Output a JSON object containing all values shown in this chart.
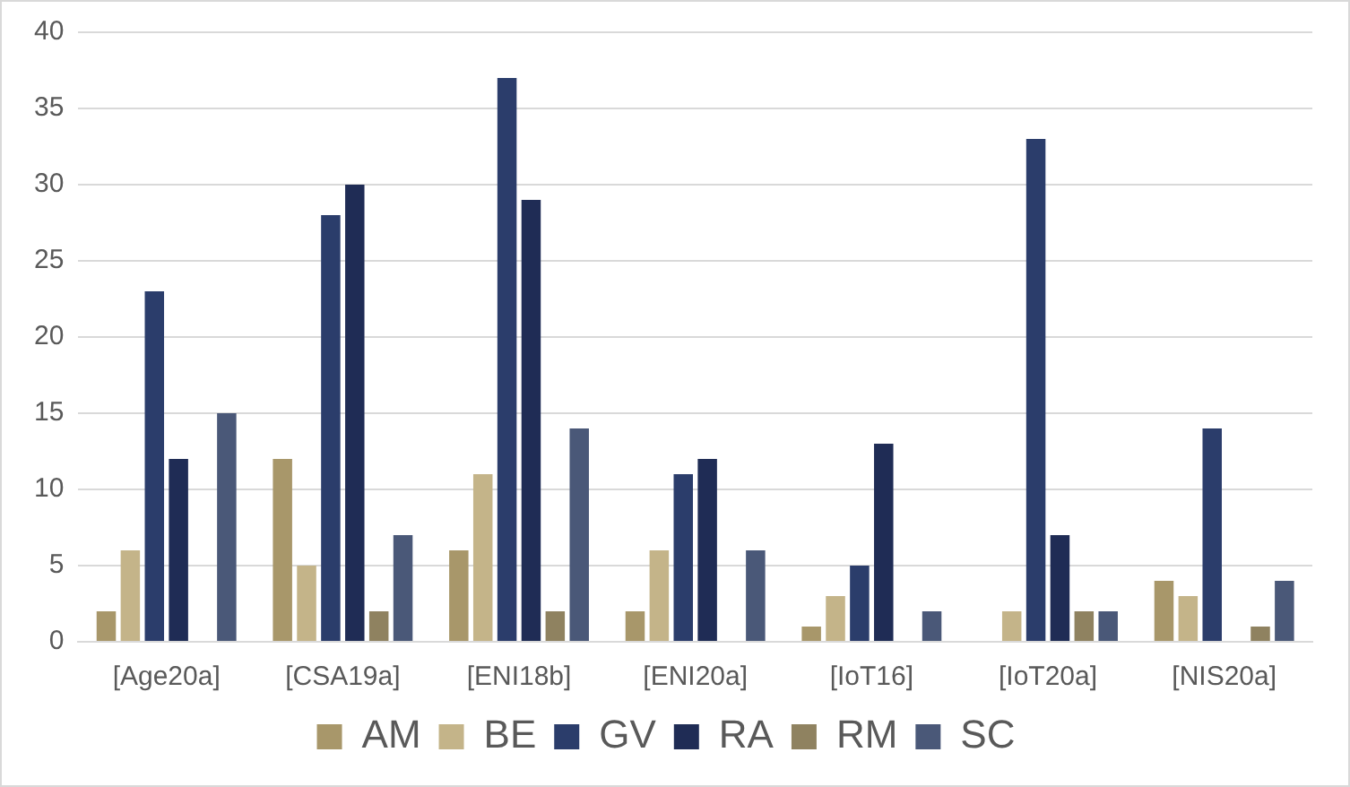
{
  "chart_data": {
    "type": "bar",
    "categories": [
      "[Age20a]",
      "[CSA19a]",
      "[ENI18b]",
      "[ENI20a]",
      "[IoT16]",
      "[IoT20a]",
      "[NIS20a]"
    ],
    "series": [
      {
        "name": "AM",
        "color": "#a8976a",
        "values": [
          2,
          12,
          6,
          2,
          1,
          0,
          4
        ]
      },
      {
        "name": "BE",
        "color": "#c4b489",
        "values": [
          6,
          5,
          11,
          6,
          3,
          2,
          3
        ]
      },
      {
        "name": "GV",
        "color": "#2b3d6b",
        "values": [
          23,
          28,
          37,
          11,
          5,
          33,
          14
        ]
      },
      {
        "name": "RA",
        "color": "#1f2c55",
        "values": [
          12,
          30,
          29,
          12,
          13,
          7,
          0
        ]
      },
      {
        "name": "RM",
        "color": "#8f8260",
        "values": [
          0,
          2,
          2,
          0,
          0,
          2,
          1
        ]
      },
      {
        "name": "SC",
        "color": "#4a5878",
        "values": [
          15,
          7,
          14,
          6,
          2,
          2,
          4
        ]
      }
    ],
    "ylim": [
      0,
      40
    ],
    "yticks": [
      0,
      5,
      10,
      15,
      20,
      25,
      30,
      35,
      40
    ],
    "grid": "y",
    "legend": "bottom"
  }
}
